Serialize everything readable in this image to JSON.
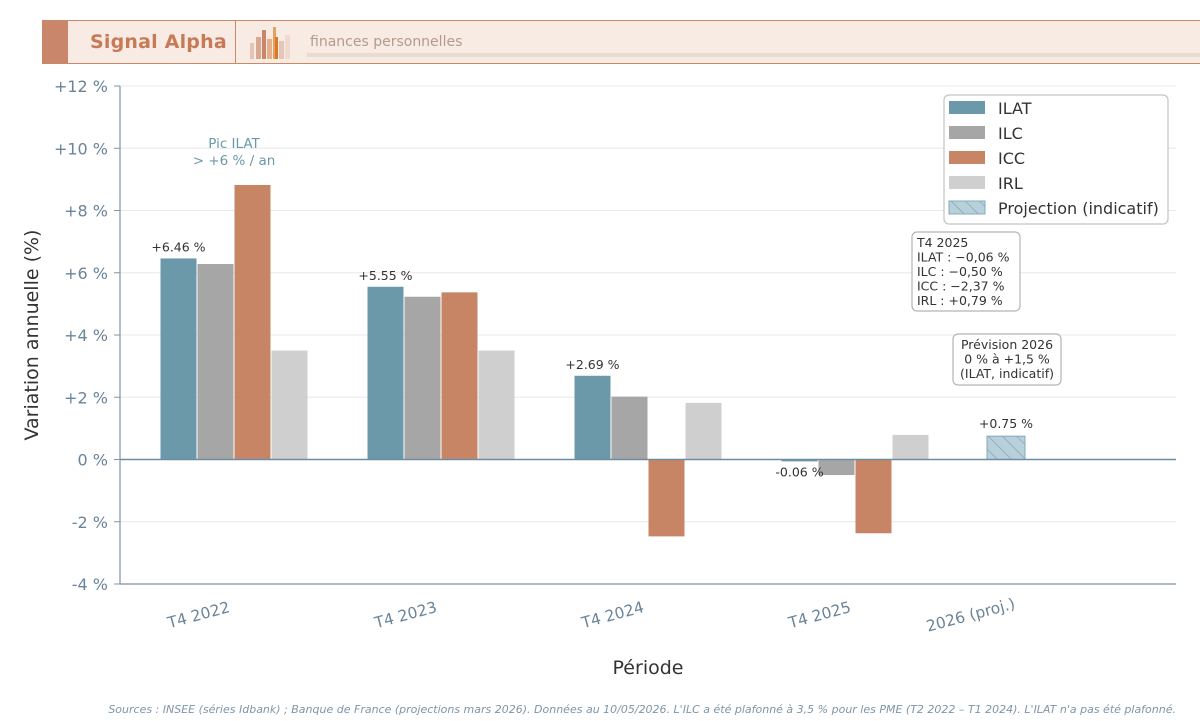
{
  "header": {
    "brand": "Signal Alpha",
    "subtitle": "finances personnelles"
  },
  "chart_data": {
    "type": "bar",
    "categories": [
      "T4 2022",
      "T4 2023",
      "T4 2024",
      "T4 2025",
      "2026 (proj.)"
    ],
    "series": [
      {
        "name": "ILAT",
        "values": [
          6.46,
          5.55,
          2.69,
          -0.06,
          null
        ],
        "color": "#6b99aa"
      },
      {
        "name": "ILC",
        "values": [
          6.28,
          5.23,
          2.02,
          -0.5,
          null
        ],
        "color": "#a6a6a6"
      },
      {
        "name": "ICC",
        "values": [
          8.82,
          5.37,
          -2.47,
          -2.37,
          null
        ],
        "color": "#c88566"
      },
      {
        "name": "IRL",
        "values": [
          3.5,
          3.5,
          1.82,
          0.79,
          null
        ],
        "color": "#cfcfcf"
      }
    ],
    "projection": {
      "name": "Projection (indicatif)",
      "category": "2026 (proj.)",
      "value": 0.75,
      "color": "#b8d0da",
      "hatch_color": "#84a8b8"
    },
    "data_labels": [
      "+6.46 %",
      "+5.55 %",
      "+2.69 %",
      "-0.06 %",
      "+0.75 %"
    ],
    "xlabel": "Période",
    "ylabel": "Variation annuelle (%)",
    "ylim": [
      -4,
      12
    ],
    "yticks": [
      -4,
      -2,
      0,
      2,
      4,
      6,
      8,
      10,
      12
    ],
    "ytick_labels": [
      "-4 %",
      "-2 %",
      "0 %",
      "+2 %",
      "+4 %",
      "+6 %",
      "+8 %",
      "+10 %",
      "+12 %"
    ],
    "grid": true,
    "legend_position": "top-right",
    "annotations": {
      "peak": {
        "lines": [
          "Pic ILAT",
          "> +6 % / an"
        ],
        "color": "#6b99aa"
      },
      "box_2025": {
        "lines": [
          "T4 2025",
          "ILAT : −0,06 %",
          "ILC : −0,50 %",
          "ICC : −2,37 %",
          "IRL : +0,79 %"
        ]
      },
      "box_2026": {
        "lines": [
          "Prévision 2026",
          "0 % à +1,5 %",
          "(ILAT, indicatif)"
        ]
      }
    }
  },
  "footer": {
    "source_note": "Sources : INSEE (séries Idbank) ; Banque de France (projections mars 2026). Données au 10/05/2026. L'ILC a été plafonné à 3,5 % pour les PME (T2 2022 – T1 2024). L'ILAT n'a pas été plafonné."
  }
}
